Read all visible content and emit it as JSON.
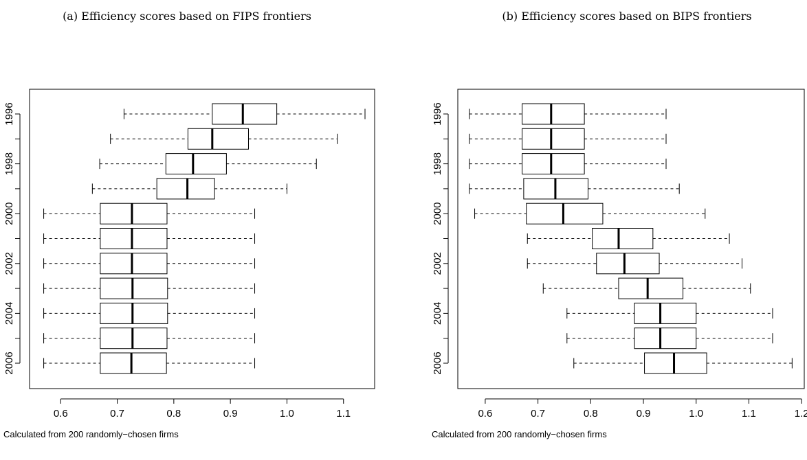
{
  "chart_data": [
    {
      "type": "boxplot",
      "orientation": "horizontal",
      "title": "(a) Efficiency scores based on FIPS frontiers",
      "caption": "Calculated from 200 randomly−chosen firms",
      "xlim": [
        0.545,
        1.155
      ],
      "xticks": [
        0.6,
        0.7,
        0.8,
        0.9,
        1.0,
        1.1
      ],
      "xtick_labels": [
        "0.6",
        "0.7",
        "0.8",
        "0.9",
        "1.0",
        "1.1"
      ],
      "categories": [
        "1996",
        "1997",
        "1998",
        "1999",
        "2000",
        "2001",
        "2002",
        "2003",
        "2004",
        "2005",
        "2006"
      ],
      "ytick_labels": [
        "1996",
        "",
        "1998",
        "",
        "2000",
        "",
        "2002",
        "",
        "2004",
        "",
        "2006"
      ],
      "boxes": [
        {
          "min": 0.712,
          "q1": 0.868,
          "median": 0.922,
          "q3": 0.982,
          "max": 1.138
        },
        {
          "min": 0.688,
          "q1": 0.825,
          "median": 0.868,
          "q3": 0.932,
          "max": 1.089
        },
        {
          "min": 0.669,
          "q1": 0.786,
          "median": 0.834,
          "q3": 0.893,
          "max": 1.052
        },
        {
          "min": 0.656,
          "q1": 0.77,
          "median": 0.824,
          "q3": 0.872,
          "max": 1.0
        },
        {
          "min": 0.57,
          "q1": 0.67,
          "median": 0.726,
          "q3": 0.788,
          "max": 0.943
        },
        {
          "min": 0.57,
          "q1": 0.67,
          "median": 0.726,
          "q3": 0.788,
          "max": 0.943
        },
        {
          "min": 0.57,
          "q1": 0.67,
          "median": 0.726,
          "q3": 0.788,
          "max": 0.943
        },
        {
          "min": 0.57,
          "q1": 0.67,
          "median": 0.727,
          "q3": 0.789,
          "max": 0.943
        },
        {
          "min": 0.57,
          "q1": 0.67,
          "median": 0.727,
          "q3": 0.789,
          "max": 0.943
        },
        {
          "min": 0.57,
          "q1": 0.67,
          "median": 0.727,
          "q3": 0.788,
          "max": 0.943
        },
        {
          "min": 0.57,
          "q1": 0.67,
          "median": 0.725,
          "q3": 0.787,
          "max": 0.943
        }
      ]
    },
    {
      "type": "boxplot",
      "orientation": "horizontal",
      "title": "(b) Efficiency scores based on BIPS frontiers",
      "caption": "Calculated from 200 randomly−chosen firms",
      "xlim": [
        0.548,
        1.205
      ],
      "xticks": [
        0.6,
        0.7,
        0.8,
        0.9,
        1.0,
        1.1,
        1.2
      ],
      "xtick_labels": [
        "0.6",
        "0.7",
        "0.8",
        "0.9",
        "1.0",
        "1.1",
        "1.2"
      ],
      "categories": [
        "1996",
        "1997",
        "1998",
        "1999",
        "2000",
        "2001",
        "2002",
        "2003",
        "2004",
        "2005",
        "2006"
      ],
      "ytick_labels": [
        "1996",
        "",
        "1998",
        "",
        "2000",
        "",
        "2002",
        "",
        "2004",
        "",
        "2006"
      ],
      "boxes": [
        {
          "min": 0.57,
          "q1": 0.67,
          "median": 0.725,
          "q3": 0.788,
          "max": 0.943
        },
        {
          "min": 0.57,
          "q1": 0.67,
          "median": 0.725,
          "q3": 0.788,
          "max": 0.943
        },
        {
          "min": 0.57,
          "q1": 0.67,
          "median": 0.725,
          "q3": 0.788,
          "max": 0.943
        },
        {
          "min": 0.57,
          "q1": 0.673,
          "median": 0.733,
          "q3": 0.795,
          "max": 0.968
        },
        {
          "min": 0.58,
          "q1": 0.678,
          "median": 0.748,
          "q3": 0.823,
          "max": 1.017
        },
        {
          "min": 0.68,
          "q1": 0.803,
          "median": 0.853,
          "q3": 0.918,
          "max": 1.063
        },
        {
          "min": 0.68,
          "q1": 0.811,
          "median": 0.864,
          "q3": 0.93,
          "max": 1.087
        },
        {
          "min": 0.71,
          "q1": 0.853,
          "median": 0.908,
          "q3": 0.975,
          "max": 1.103
        },
        {
          "min": 0.755,
          "q1": 0.883,
          "median": 0.932,
          "q3": 1.0,
          "max": 1.145
        },
        {
          "min": 0.755,
          "q1": 0.883,
          "median": 0.932,
          "q3": 1.0,
          "max": 1.145
        },
        {
          "min": 0.768,
          "q1": 0.902,
          "median": 0.958,
          "q3": 1.02,
          "max": 1.182
        }
      ]
    }
  ]
}
